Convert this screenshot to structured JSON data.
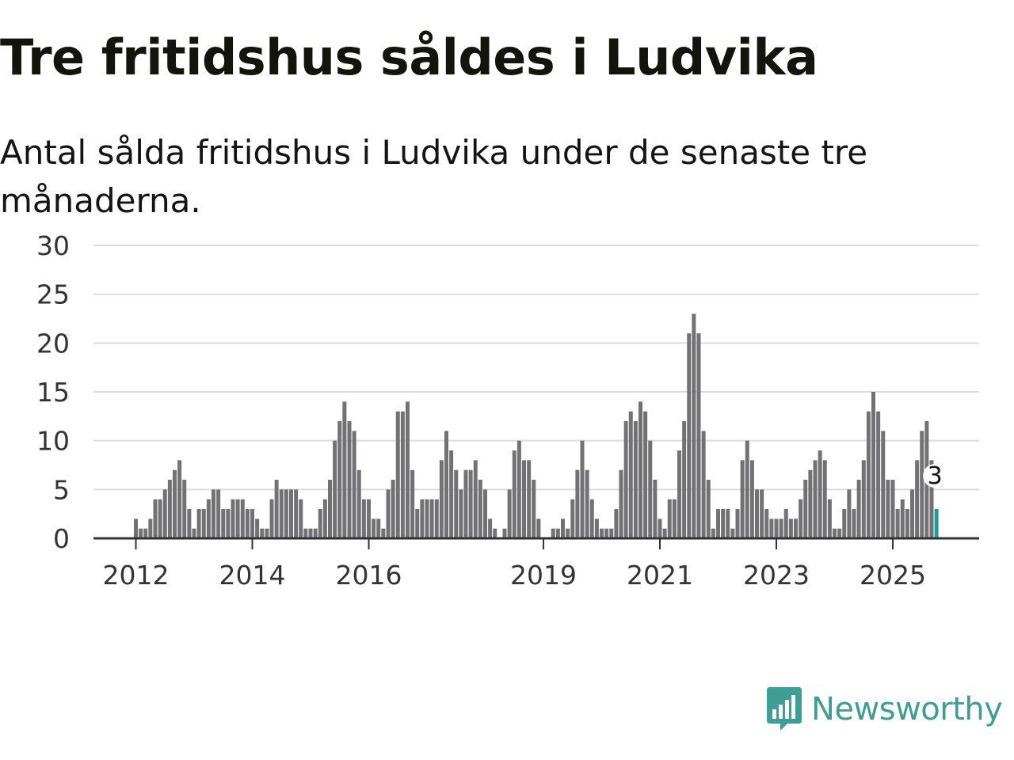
{
  "header": {
    "title": "Tre fritidshus såldes i Ludvika",
    "subtitle": "Antal sålda fritidshus i Ludvika under de senaste tre månaderna."
  },
  "chart_data": {
    "type": "bar",
    "title": "Tre fritidshus såldes i Ludvika",
    "subtitle": "Antal sålda fritidshus i Ludvika under de senaste tre månaderna.",
    "xlabel": "",
    "ylabel": "",
    "ylim": [
      0,
      30
    ],
    "y_ticks": [
      0,
      5,
      10,
      15,
      20,
      25,
      30
    ],
    "x_ticks": [
      "2012",
      "2014",
      "2016",
      "2019",
      "2021",
      "2023",
      "2025"
    ],
    "grid": true,
    "x_start": "2012-01",
    "x_period": "month",
    "series": [
      {
        "values": [
          2,
          1,
          1,
          2,
          4,
          4,
          5,
          6,
          7,
          8,
          6,
          3,
          1,
          3,
          3,
          4,
          5,
          5,
          3,
          3,
          4,
          4,
          4,
          3,
          3,
          2,
          1,
          1,
          4,
          6,
          5,
          5,
          5,
          5,
          4,
          1,
          1,
          1,
          3,
          4,
          6,
          10,
          12,
          14,
          12,
          11,
          7,
          4,
          4,
          2,
          2,
          1,
          5,
          6,
          13,
          13,
          14,
          7,
          3,
          4,
          4,
          4,
          4,
          8,
          11,
          9,
          7,
          5,
          7,
          7,
          8,
          6,
          5,
          2,
          1,
          0,
          1,
          5,
          9,
          10,
          8,
          8,
          6,
          2,
          0,
          0,
          1,
          1,
          2,
          1,
          4,
          7,
          10,
          7,
          4,
          2,
          1,
          1,
          1,
          3,
          7,
          12,
          13,
          12,
          14,
          13,
          10,
          6,
          2,
          1,
          4,
          4,
          9,
          12,
          21,
          23,
          21,
          11,
          6,
          1,
          3,
          3,
          3,
          1,
          3,
          8,
          10,
          8,
          5,
          5,
          3,
          2,
          2,
          2,
          3,
          2,
          2,
          4,
          6,
          7,
          8,
          9,
          8,
          4,
          1,
          1,
          3,
          5,
          3,
          6,
          8,
          13,
          15,
          13,
          11,
          6,
          6,
          3,
          4,
          3,
          5,
          8,
          11,
          12,
          8,
          3
        ]
      }
    ],
    "highlight": {
      "label": "3",
      "value": 3,
      "color": "#1b9e93"
    },
    "colors": {
      "bar": "#727275",
      "highlight": "#1b9e93",
      "grid": "#dcdcdc",
      "axis": "#333333",
      "text": "#333333"
    }
  },
  "brand": {
    "name": "Newsworthy",
    "icon": "newsworthy-logo-icon",
    "color": "#3f9e93"
  }
}
